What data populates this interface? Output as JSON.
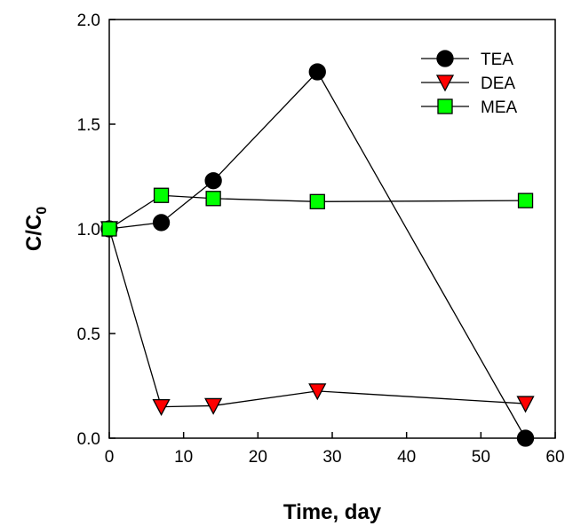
{
  "chart_data": {
    "type": "line",
    "title": "",
    "xlabel": "Time, day",
    "ylabel_main": "C/C",
    "ylabel_sub": "0",
    "xlim": [
      0,
      60
    ],
    "ylim": [
      0,
      2.0
    ],
    "xticks": [
      0,
      10,
      20,
      30,
      40,
      50,
      60
    ],
    "yticks": [
      0.0,
      0.5,
      1.0,
      1.5,
      2.0
    ],
    "xtick_labels": [
      "0",
      "10",
      "20",
      "30",
      "40",
      "50",
      "60"
    ],
    "ytick_labels": [
      "0.0",
      "0.5",
      "1.0",
      "1.5",
      "2.0"
    ],
    "grid": false,
    "legend_position": "top-right",
    "series": [
      {
        "name": "TEA",
        "marker": "circle",
        "color": "#000000",
        "x": [
          0,
          7,
          14,
          28,
          56
        ],
        "y": [
          1.0,
          1.03,
          1.23,
          1.75,
          0.0
        ]
      },
      {
        "name": "DEA",
        "marker": "triangle-down",
        "color": "#ff0000",
        "x": [
          0,
          7,
          14,
          28,
          56
        ],
        "y": [
          1.0,
          0.15,
          0.155,
          0.225,
          0.165
        ]
      },
      {
        "name": "MEA",
        "marker": "square",
        "color": "#00ff00",
        "x": [
          0,
          7,
          14,
          28,
          56
        ],
        "y": [
          1.0,
          1.16,
          1.145,
          1.13,
          1.135
        ]
      }
    ]
  }
}
